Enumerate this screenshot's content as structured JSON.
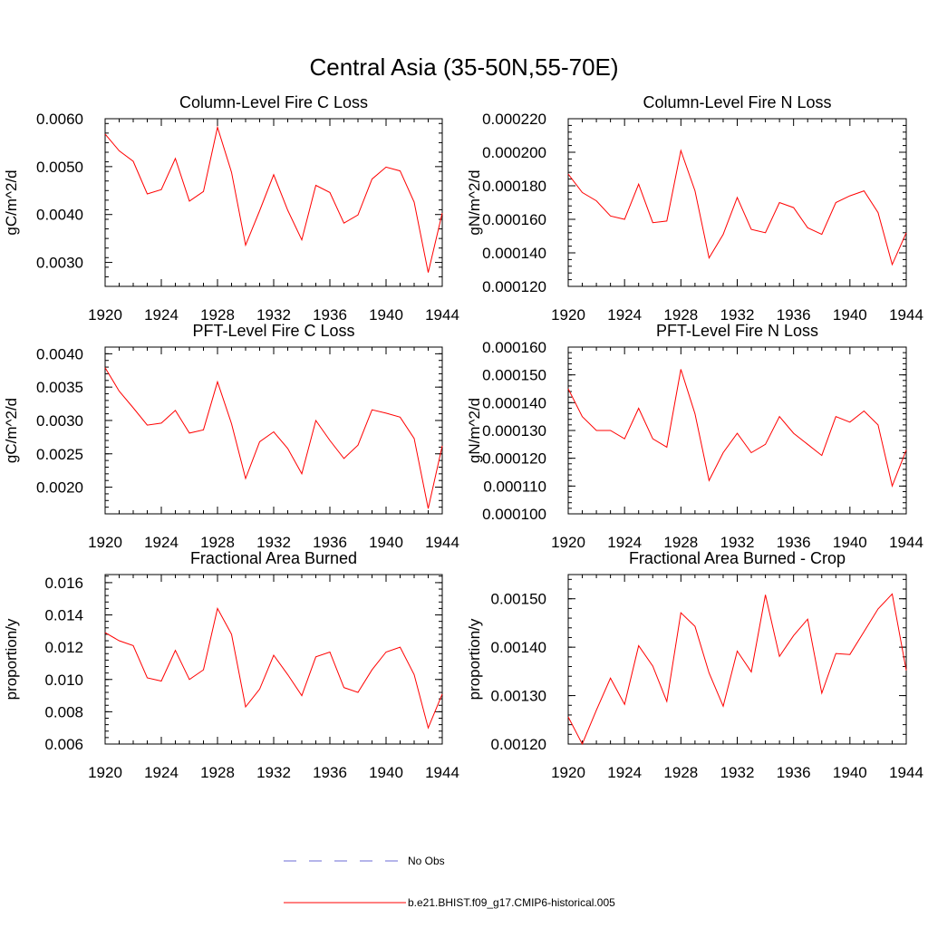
{
  "title": "Central Asia (35-50N,55-70E)",
  "legend": [
    {
      "label": "No Obs",
      "color": "#6b6bd6",
      "style": "dashed"
    },
    {
      "label": "b.e21.BHIST.f09_g17.CMIP6-historical.005",
      "color": "#ff0000",
      "style": "solid"
    }
  ],
  "chart_data": [
    {
      "type": "line",
      "title": "Column-Level Fire C Loss",
      "ylabel": "gC/m^2/d",
      "xlim": [
        1920,
        1944
      ],
      "ylim": [
        0.0025,
        0.006
      ],
      "xticks": [
        "1920",
        "1924",
        "1928",
        "1932",
        "1936",
        "1940",
        "1944"
      ],
      "yticks": [
        {
          "v": 0.003,
          "label": "0.0030"
        },
        {
          "v": 0.004,
          "label": "0.0040"
        },
        {
          "v": 0.005,
          "label": "0.0050"
        },
        {
          "v": 0.006,
          "label": "0.0060"
        }
      ],
      "series": [
        {
          "x": [
            1920,
            1921,
            1922,
            1923,
            1924,
            1925,
            1926,
            1927,
            1928,
            1929,
            1930,
            1931,
            1932,
            1933,
            1934,
            1935,
            1936,
            1937,
            1938,
            1939,
            1940,
            1941,
            1942,
            1943,
            1944
          ],
          "y": [
            0.00568,
            0.00533,
            0.00511,
            0.00443,
            0.00452,
            0.00517,
            0.00428,
            0.00448,
            0.00582,
            0.00488,
            0.00336,
            0.00408,
            0.00483,
            0.00409,
            0.00347,
            0.00461,
            0.00446,
            0.00382,
            0.00399,
            0.00474,
            0.00499,
            0.00491,
            0.00426,
            0.00279,
            0.00403
          ]
        }
      ]
    },
    {
      "type": "line",
      "title": "Column-Level Fire N Loss",
      "ylabel": "gN/m^2/d",
      "xlim": [
        1920,
        1944
      ],
      "ylim": [
        0.00012,
        0.00022
      ],
      "xticks": [
        "1920",
        "1924",
        "1928",
        "1932",
        "1936",
        "1940",
        "1944"
      ],
      "yticks": [
        {
          "v": 0.00012,
          "label": "0.000120"
        },
        {
          "v": 0.00014,
          "label": "0.000140"
        },
        {
          "v": 0.00016,
          "label": "0.000160"
        },
        {
          "v": 0.00018,
          "label": "0.000180"
        },
        {
          "v": 0.0002,
          "label": "0.000200"
        },
        {
          "v": 0.00022,
          "label": "0.000220"
        }
      ],
      "series": [
        {
          "x": [
            1920,
            1921,
            1922,
            1923,
            1924,
            1925,
            1926,
            1927,
            1928,
            1929,
            1930,
            1931,
            1932,
            1933,
            1934,
            1935,
            1936,
            1937,
            1938,
            1939,
            1940,
            1941,
            1942,
            1943,
            1944
          ],
          "y": [
            0.000187,
            0.000176,
            0.000171,
            0.000162,
            0.00016,
            0.000181,
            0.000158,
            0.000159,
            0.000201,
            0.000177,
            0.000137,
            0.000151,
            0.000173,
            0.000154,
            0.000152,
            0.00017,
            0.000167,
            0.000155,
            0.000151,
            0.00017,
            0.000174,
            0.000177,
            0.000164,
            0.000133,
            0.000152
          ]
        }
      ]
    },
    {
      "type": "line",
      "title": "PFT-Level Fire C Loss",
      "ylabel": "gC/m^2/d",
      "xlim": [
        1920,
        1944
      ],
      "ylim": [
        0.0016,
        0.0041
      ],
      "xticks": [
        "1920",
        "1924",
        "1928",
        "1932",
        "1936",
        "1940",
        "1944"
      ],
      "yticks": [
        {
          "v": 0.002,
          "label": "0.0020"
        },
        {
          "v": 0.0025,
          "label": "0.0025"
        },
        {
          "v": 0.003,
          "label": "0.0030"
        },
        {
          "v": 0.0035,
          "label": "0.0035"
        },
        {
          "v": 0.004,
          "label": "0.0040"
        }
      ],
      "series": [
        {
          "x": [
            1920,
            1921,
            1922,
            1923,
            1924,
            1925,
            1926,
            1927,
            1928,
            1929,
            1930,
            1931,
            1932,
            1933,
            1934,
            1935,
            1936,
            1937,
            1938,
            1939,
            1940,
            1941,
            1942,
            1943,
            1944
          ],
          "y": [
            0.00379,
            0.00344,
            0.00319,
            0.00293,
            0.00296,
            0.00315,
            0.00281,
            0.00286,
            0.00358,
            0.00295,
            0.00213,
            0.00268,
            0.00283,
            0.00258,
            0.0022,
            0.003,
            0.0027,
            0.00243,
            0.00263,
            0.00316,
            0.00311,
            0.00305,
            0.00273,
            0.00168,
            0.00262
          ]
        }
      ]
    },
    {
      "type": "line",
      "title": "PFT-Level Fire N Loss",
      "ylabel": "gN/m^2/d",
      "xlim": [
        1920,
        1944
      ],
      "ylim": [
        0.0001,
        0.00016
      ],
      "xticks": [
        "1920",
        "1924",
        "1928",
        "1932",
        "1936",
        "1940",
        "1944"
      ],
      "yticks": [
        {
          "v": 0.0001,
          "label": "0.000100"
        },
        {
          "v": 0.00011,
          "label": "0.000110"
        },
        {
          "v": 0.00012,
          "label": "0.000120"
        },
        {
          "v": 0.00013,
          "label": "0.000130"
        },
        {
          "v": 0.00014,
          "label": "0.000140"
        },
        {
          "v": 0.00015,
          "label": "0.000150"
        },
        {
          "v": 0.00016,
          "label": "0.000160"
        }
      ],
      "series": [
        {
          "x": [
            1920,
            1921,
            1922,
            1923,
            1924,
            1925,
            1926,
            1927,
            1928,
            1929,
            1930,
            1931,
            1932,
            1933,
            1934,
            1935,
            1936,
            1937,
            1938,
            1939,
            1940,
            1941,
            1942,
            1943,
            1944
          ],
          "y": [
            0.000145,
            0.000135,
            0.00013,
            0.00013,
            0.000127,
            0.000138,
            0.000127,
            0.000124,
            0.000152,
            0.000136,
            0.000112,
            0.000122,
            0.000129,
            0.000122,
            0.000125,
            0.000135,
            0.000129,
            0.000125,
            0.000121,
            0.000135,
            0.000133,
            0.000137,
            0.000132,
            0.00011,
            0.000123
          ]
        }
      ]
    },
    {
      "type": "line",
      "title": "Fractional Area Burned",
      "ylabel": "proportion/y",
      "xlim": [
        1920,
        1944
      ],
      "ylim": [
        0.006,
        0.0165
      ],
      "xticks": [
        "1920",
        "1924",
        "1928",
        "1932",
        "1936",
        "1940",
        "1944"
      ],
      "yticks": [
        {
          "v": 0.006,
          "label": "0.006"
        },
        {
          "v": 0.008,
          "label": "0.008"
        },
        {
          "v": 0.01,
          "label": "0.010"
        },
        {
          "v": 0.012,
          "label": "0.012"
        },
        {
          "v": 0.014,
          "label": "0.014"
        },
        {
          "v": 0.016,
          "label": "0.016"
        }
      ],
      "series": [
        {
          "x": [
            1920,
            1921,
            1922,
            1923,
            1924,
            1925,
            1926,
            1927,
            1928,
            1929,
            1930,
            1931,
            1932,
            1933,
            1934,
            1935,
            1936,
            1937,
            1938,
            1939,
            1940,
            1941,
            1942,
            1943,
            1944
          ],
          "y": [
            0.0129,
            0.0124,
            0.0121,
            0.0101,
            0.0099,
            0.0118,
            0.01,
            0.0106,
            0.0144,
            0.0128,
            0.0083,
            0.0094,
            0.0115,
            0.0103,
            0.009,
            0.0114,
            0.0117,
            0.0095,
            0.0092,
            0.0106,
            0.0117,
            0.012,
            0.0103,
            0.007,
            0.0091
          ]
        }
      ]
    },
    {
      "type": "line",
      "title": "Fractional Area Burned - Crop",
      "ylabel": "proportion/y",
      "xlim": [
        1920,
        1944
      ],
      "ylim": [
        0.0012,
        0.00155
      ],
      "xticks": [
        "1920",
        "1924",
        "1928",
        "1932",
        "1936",
        "1940",
        "1944"
      ],
      "yticks": [
        {
          "v": 0.0012,
          "label": "0.00120"
        },
        {
          "v": 0.0013,
          "label": "0.00130"
        },
        {
          "v": 0.0014,
          "label": "0.00140"
        },
        {
          "v": 0.0015,
          "label": "0.00150"
        }
      ],
      "series": [
        {
          "x": [
            1920,
            1921,
            1922,
            1923,
            1924,
            1925,
            1926,
            1927,
            1928,
            1929,
            1930,
            1931,
            1932,
            1933,
            1934,
            1935,
            1936,
            1937,
            1938,
            1939,
            1940,
            1941,
            1942,
            1943,
            1944
          ],
          "y": [
            0.001256,
            0.0012,
            0.00127,
            0.001336,
            0.001282,
            0.001403,
            0.001361,
            0.001288,
            0.001471,
            0.001443,
            0.001347,
            0.001278,
            0.001392,
            0.001349,
            0.001508,
            0.001381,
            0.001424,
            0.001458,
            0.001305,
            0.001387,
            0.001385,
            0.001432,
            0.001479,
            0.00151,
            0.001352
          ]
        }
      ]
    }
  ]
}
